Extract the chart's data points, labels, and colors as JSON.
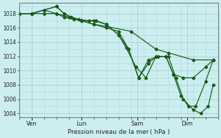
{
  "title": "",
  "xlabel": "Pression niveau de la mer ( hPa )",
  "ylabel": "",
  "background_color": "#cceef0",
  "grid_color": "#aed4d4",
  "line_color": "#1a5c1a",
  "ylim": [
    1003.5,
    1019.5
  ],
  "yticks": [
    1004,
    1006,
    1008,
    1010,
    1012,
    1014,
    1016,
    1018
  ],
  "xlim": [
    0,
    8
  ],
  "day_labels": [
    "Ven",
    "Lun",
    "Sam",
    "Dim"
  ],
  "day_positions": [
    0.5,
    2.5,
    4.75,
    6.75
  ],
  "series": [
    {
      "x": [
        0,
        0.5,
        1.0,
        1.5,
        2.0,
        2.5,
        3.0,
        3.5,
        4.5,
        5.5,
        6.0,
        7.0,
        7.8
      ],
      "y": [
        1018,
        1018,
        1018,
        1018,
        1017.5,
        1017,
        1016.5,
        1016.2,
        1015.5,
        1013.0,
        1012.5,
        1011.5,
        1011.5
      ]
    },
    {
      "x": [
        0,
        0.5,
        1.0,
        1.5,
        1.8,
        2.1,
        2.4,
        2.8,
        3.1,
        3.5,
        4.0,
        4.3,
        4.7,
        5.1,
        5.5,
        5.9,
        6.2,
        6.6,
        7.0,
        7.5,
        7.8
      ],
      "y": [
        1018,
        1018,
        1018.5,
        1019,
        1018,
        1017.5,
        1017.2,
        1017,
        1017,
        1016.5,
        1015,
        1013.2,
        1010.5,
        1009,
        1012,
        1012,
        1009.5,
        1009,
        1009,
        1010.5,
        1011.5
      ]
    },
    {
      "x": [
        0,
        0.5,
        1.0,
        1.5,
        1.8,
        2.1,
        2.5,
        3.0,
        3.5,
        4.0,
        4.4,
        4.8,
        5.2,
        5.6,
        6.0,
        6.3,
        6.6,
        7.0,
        7.3,
        7.6,
        7.8
      ],
      "y": [
        1018,
        1018,
        1018.5,
        1019,
        1018,
        1017.5,
        1017,
        1017,
        1016.5,
        1015,
        1013,
        1009,
        1011.5,
        1012,
        1012,
        1009,
        1006,
        1004.5,
        1004,
        1005,
        1008
      ]
    },
    {
      "x": [
        0,
        0.5,
        1.0,
        1.5,
        1.8,
        2.2,
        2.5,
        3.0,
        3.5,
        4.0,
        4.4,
        4.8,
        5.2,
        5.5,
        5.9,
        6.2,
        6.5,
        6.8,
        7.1,
        7.5,
        7.8
      ],
      "y": [
        1018,
        1018,
        1018.5,
        1018,
        1017.5,
        1017.2,
        1017,
        1016.5,
        1016,
        1015.5,
        1013,
        1009,
        1011,
        1012,
        1012,
        1009.5,
        1006.5,
        1005,
        1005,
        1008.5,
        1011.5
      ]
    }
  ]
}
